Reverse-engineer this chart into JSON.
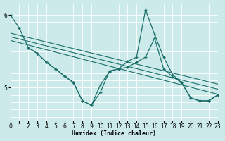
{
  "xlabel": "Humidex (Indice chaleur)",
  "xlim": [
    0,
    23
  ],
  "ylim": [
    4.55,
    6.15
  ],
  "yticks": [
    5,
    6
  ],
  "xticks": [
    0,
    1,
    2,
    3,
    4,
    5,
    6,
    7,
    8,
    9,
    10,
    11,
    12,
    13,
    14,
    15,
    16,
    17,
    18,
    19,
    20,
    21,
    22,
    23
  ],
  "bg_color": "#cceaea",
  "grid_minor_color": "#b8dede",
  "grid_major_color": "#ffffff",
  "line_color": "#1a6e6a",
  "line1": {
    "x": [
      0,
      1,
      2,
      3,
      4,
      5,
      6,
      7,
      8,
      9,
      10,
      11,
      12,
      13,
      14,
      15,
      16,
      17,
      18,
      19,
      20,
      21,
      22,
      23
    ],
    "y": [
      6.0,
      5.82,
      5.55,
      5.47,
      5.35,
      5.26,
      5.16,
      5.07,
      4.82,
      4.76,
      4.94,
      5.23,
      5.26,
      5.36,
      5.42,
      6.07,
      5.73,
      5.42,
      5.18,
      5.07,
      4.86,
      4.82,
      4.82,
      4.9
    ]
  },
  "line2": {
    "x": [
      2,
      3,
      4,
      5,
      6,
      7,
      8,
      9,
      10,
      11,
      12,
      13,
      14,
      15,
      16,
      17,
      18,
      19,
      20,
      21,
      22,
      23
    ],
    "y": [
      5.55,
      5.47,
      5.35,
      5.26,
      5.16,
      5.07,
      4.82,
      4.76,
      5.04,
      5.22,
      5.26,
      5.28,
      5.35,
      5.42,
      5.68,
      5.26,
      5.15,
      5.07,
      4.86,
      4.82,
      4.82,
      4.9
    ]
  },
  "trend_lines": [
    {
      "x": [
        0,
        23
      ],
      "y": [
        5.75,
        5.05
      ]
    },
    {
      "x": [
        0,
        23
      ],
      "y": [
        5.7,
        4.98
      ]
    },
    {
      "x": [
        0,
        23
      ],
      "y": [
        5.65,
        4.91
      ]
    }
  ]
}
